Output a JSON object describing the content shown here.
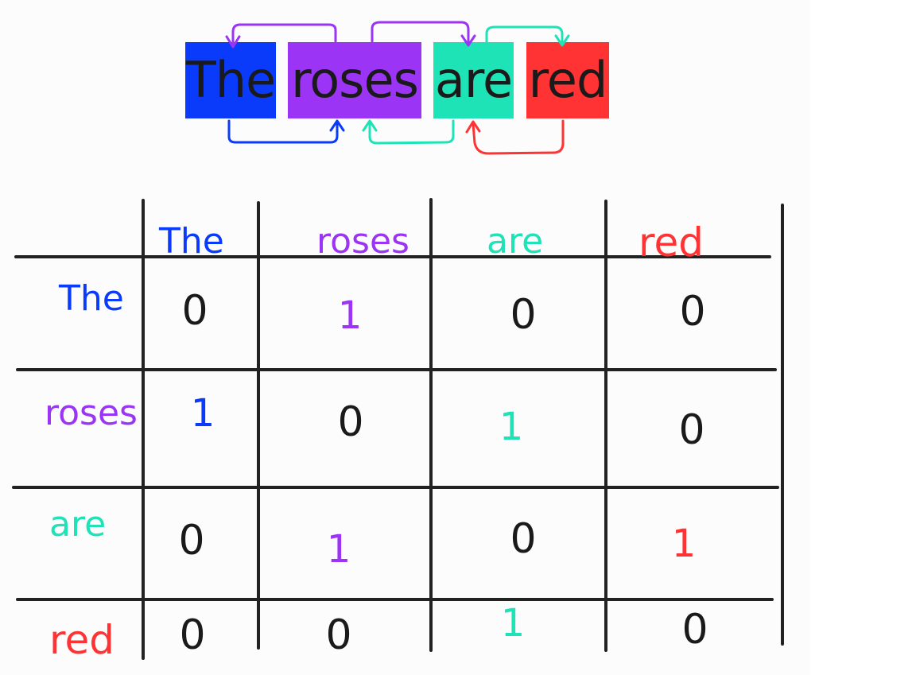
{
  "colors": {
    "the": "#0a3bfa",
    "roses": "#9b34f5",
    "are": "#1ee3b6",
    "red": "#ff3333",
    "grid": "#222222",
    "zero": "#1a1a1a"
  },
  "sentence": {
    "words": [
      "The",
      "roses",
      "are",
      "red"
    ]
  },
  "matrix": {
    "col_headers": [
      "The",
      "roses",
      "are",
      "red"
    ],
    "row_headers": [
      "The",
      "roses",
      "are",
      "red"
    ],
    "rows": [
      [
        "0",
        "1",
        "0",
        "0"
      ],
      [
        "1",
        "0",
        "1",
        "0"
      ],
      [
        "0",
        "1",
        "0",
        "1"
      ],
      [
        "0",
        "0",
        "1",
        "0"
      ]
    ]
  }
}
